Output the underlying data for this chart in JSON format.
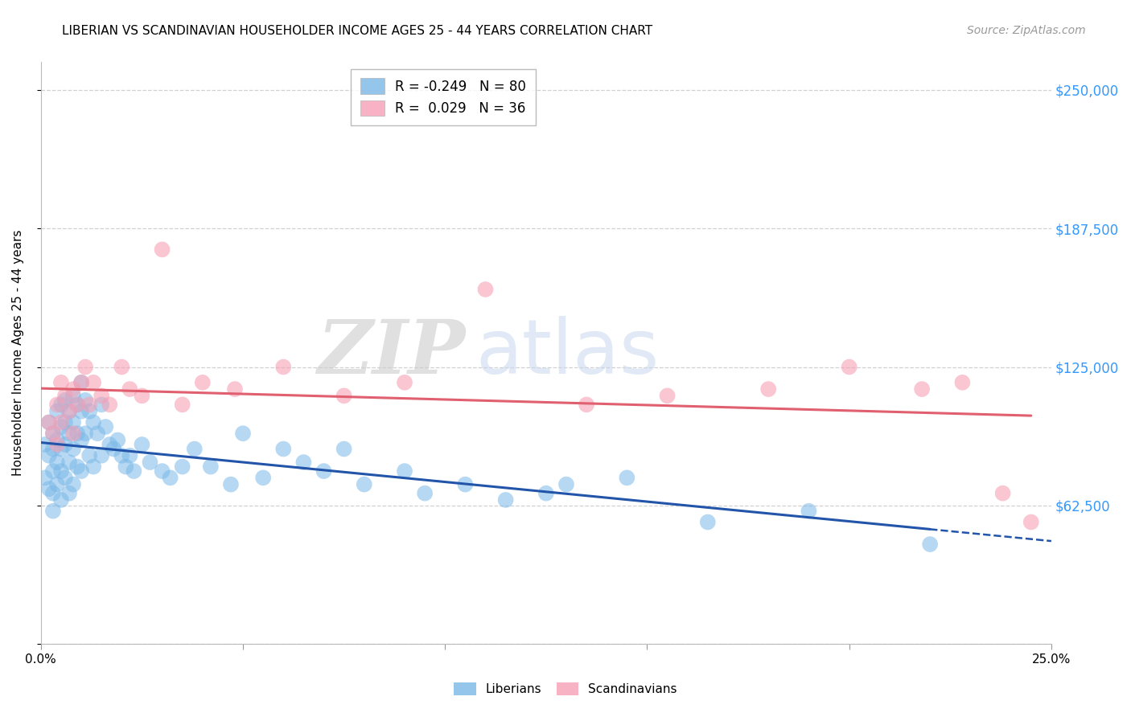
{
  "title": "LIBERIAN VS SCANDINAVIAN HOUSEHOLDER INCOME AGES 25 - 44 YEARS CORRELATION CHART",
  "source": "Source: ZipAtlas.com",
  "ylabel": "Householder Income Ages 25 - 44 years",
  "xlim": [
    0.0,
    0.25
  ],
  "ylim": [
    0,
    262500
  ],
  "yticks": [
    0,
    62500,
    125000,
    187500,
    250000
  ],
  "yticklabels_right": [
    "",
    "$62,500",
    "$125,000",
    "$187,500",
    "$250,000"
  ],
  "xticks": [
    0.0,
    0.05,
    0.1,
    0.15,
    0.2,
    0.25
  ],
  "xticklabels": [
    "0.0%",
    "",
    "",
    "",
    "",
    "25.0%"
  ],
  "liberian_color": "#7ab8e8",
  "scandinavian_color": "#f5a0b5",
  "liberian_line_color": "#2255aa",
  "scandinavian_line_color": "#e06070",
  "background_color": "#ffffff",
  "grid_color": "#cccccc",
  "watermark_zip": "ZIP",
  "watermark_atlas": "atlas",
  "liberian_x": [
    0.001,
    0.001,
    0.002,
    0.002,
    0.002,
    0.003,
    0.003,
    0.003,
    0.003,
    0.003,
    0.004,
    0.004,
    0.004,
    0.004,
    0.005,
    0.005,
    0.005,
    0.005,
    0.005,
    0.006,
    0.006,
    0.006,
    0.006,
    0.007,
    0.007,
    0.007,
    0.007,
    0.008,
    0.008,
    0.008,
    0.008,
    0.009,
    0.009,
    0.009,
    0.01,
    0.01,
    0.01,
    0.01,
    0.011,
    0.011,
    0.012,
    0.012,
    0.013,
    0.013,
    0.014,
    0.015,
    0.015,
    0.016,
    0.017,
    0.018,
    0.019,
    0.02,
    0.021,
    0.022,
    0.023,
    0.025,
    0.027,
    0.03,
    0.032,
    0.035,
    0.038,
    0.042,
    0.047,
    0.055,
    0.065,
    0.075,
    0.09,
    0.105,
    0.125,
    0.145,
    0.05,
    0.06,
    0.07,
    0.08,
    0.095,
    0.115,
    0.13,
    0.165,
    0.19,
    0.22
  ],
  "liberian_y": [
    90000,
    75000,
    100000,
    85000,
    70000,
    95000,
    88000,
    78000,
    68000,
    60000,
    105000,
    92000,
    82000,
    72000,
    108000,
    98000,
    88000,
    78000,
    65000,
    110000,
    100000,
    90000,
    75000,
    105000,
    95000,
    82000,
    68000,
    112000,
    100000,
    88000,
    72000,
    108000,
    95000,
    80000,
    118000,
    105000,
    92000,
    78000,
    110000,
    95000,
    105000,
    85000,
    100000,
    80000,
    95000,
    108000,
    85000,
    98000,
    90000,
    88000,
    92000,
    85000,
    80000,
    85000,
    78000,
    90000,
    82000,
    78000,
    75000,
    80000,
    88000,
    80000,
    72000,
    75000,
    82000,
    88000,
    78000,
    72000,
    68000,
    75000,
    95000,
    88000,
    78000,
    72000,
    68000,
    65000,
    72000,
    55000,
    60000,
    45000
  ],
  "scandinavian_x": [
    0.002,
    0.003,
    0.004,
    0.004,
    0.005,
    0.005,
    0.006,
    0.007,
    0.008,
    0.008,
    0.009,
    0.01,
    0.011,
    0.012,
    0.013,
    0.015,
    0.017,
    0.02,
    0.022,
    0.025,
    0.03,
    0.035,
    0.04,
    0.048,
    0.06,
    0.075,
    0.09,
    0.11,
    0.135,
    0.155,
    0.18,
    0.2,
    0.218,
    0.228,
    0.238,
    0.245
  ],
  "scandinavian_y": [
    100000,
    95000,
    108000,
    90000,
    118000,
    100000,
    112000,
    105000,
    115000,
    95000,
    108000,
    118000,
    125000,
    108000,
    118000,
    112000,
    108000,
    125000,
    115000,
    112000,
    178000,
    108000,
    118000,
    115000,
    125000,
    112000,
    118000,
    160000,
    108000,
    112000,
    115000,
    125000,
    115000,
    118000,
    68000,
    55000
  ]
}
